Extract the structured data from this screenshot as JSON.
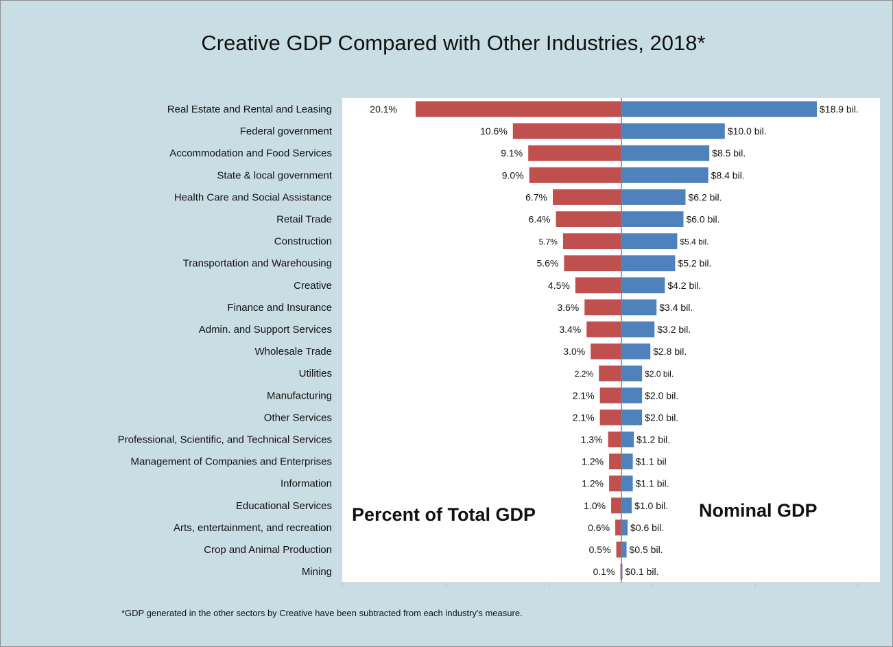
{
  "chart_data": {
    "type": "bar",
    "orientation": "horizontal-diverging",
    "title": "Creative GDP Compared with Other Industries, 2018*",
    "footnote": "*GDP generated in the other sectors by Creative have been subtracted from each industry's measure.",
    "left_side_label": "Percent of Total GDP",
    "right_side_label": "Nominal GDP",
    "colors": {
      "percent": "#c0504d",
      "nominal": "#4f81bd",
      "center_line": "#7f7f7f"
    },
    "categories": [
      "Real Estate and Rental and Leasing",
      "Federal government",
      "Accommodation and Food Services",
      "State & local government",
      "Health Care and Social Assistance",
      "Retail Trade",
      "Construction",
      "Transportation and Warehousing",
      "Creative",
      "Finance and Insurance",
      "Admin. and Support  Services",
      "Wholesale Trade",
      "Utilities",
      "Manufacturing",
      "Other Services",
      "Professional, Scientific, and Technical Services",
      "Management of Companies and Enterprises",
      "Information",
      "Educational Services",
      "Arts, entertainment, and recreation",
      "Crop and Animal Production",
      "Mining"
    ],
    "series": [
      {
        "name": "Percent of Total GDP",
        "values": [
          20.1,
          10.6,
          9.1,
          9.0,
          6.7,
          6.4,
          5.7,
          5.6,
          4.5,
          3.6,
          3.4,
          3.0,
          2.2,
          2.1,
          2.1,
          1.3,
          1.2,
          1.2,
          1.0,
          0.6,
          0.5,
          0.1
        ],
        "labels": [
          "20.1%",
          "10.6%",
          "9.1%",
          "9.0%",
          "6.7%",
          "6.4%",
          "5.7%",
          "5.6%",
          "4.5%",
          "3.6%",
          "3.4%",
          "3.0%",
          "2.2%",
          "2.1%",
          "2.1%",
          "1.3%",
          "1.2%",
          "1.2%",
          "1.0%",
          "0.6%",
          "0.5%",
          "0.1%"
        ]
      },
      {
        "name": "Nominal GDP",
        "values": [
          18.9,
          10.0,
          8.5,
          8.4,
          6.2,
          6.0,
          5.4,
          5.2,
          4.2,
          3.4,
          3.2,
          2.8,
          2.0,
          2.0,
          2.0,
          1.2,
          1.1,
          1.1,
          1.0,
          0.6,
          0.5,
          0.1
        ],
        "labels": [
          "$18.9 bil.",
          "$10.0 bil.",
          "$8.5 bil.",
          "$8.4 bil.",
          "$6.2 bil.",
          "$6.0 bil.",
          "$5.4 bil.",
          "$5.2 bil.",
          "$4.2 bil.",
          "$3.4 bil.",
          "$3.2 bil.",
          "$2.8 bil.",
          "$2.0 bil.",
          "$2.0 bil.",
          "$2.0 bil.",
          "$1.2 bil.",
          "$1.1 bil",
          "$1.1 bil.",
          "$1.0 bil.",
          "$0.6 bil.",
          "$0.5 bil.",
          "$0.1 bil."
        ]
      }
    ],
    "small_label_indices": [
      6,
      12
    ]
  }
}
